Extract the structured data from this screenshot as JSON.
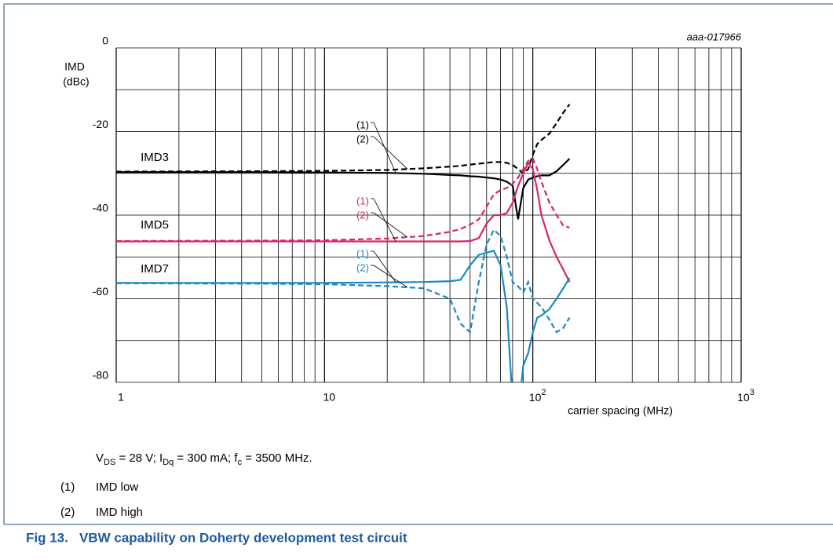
{
  "chart_data": {
    "type": "line",
    "figure_id": "aaa-017966",
    "y_label": [
      "IMD",
      "(dBc)"
    ],
    "x_label": "carrier spacing (MHz)",
    "xscale": "log",
    "xlim": [
      1,
      1000
    ],
    "xticks": [
      1,
      10,
      {
        "value": 100,
        "label": "10",
        "exp": "2"
      },
      {
        "value": 1000,
        "label": "10",
        "exp": "3"
      }
    ],
    "minor_grid": true,
    "ylim": [
      -80,
      0
    ],
    "yticks": [
      0,
      -20,
      -40,
      -60,
      -80
    ],
    "ygrid": [
      0,
      -10,
      -20,
      -30,
      -40,
      -50,
      -60,
      -70,
      -80
    ],
    "x": [
      1,
      5,
      10,
      20,
      30,
      40,
      45,
      50,
      55,
      60,
      65,
      70,
      75,
      80,
      85,
      90,
      95,
      100,
      105,
      110,
      120,
      130,
      140,
      150
    ],
    "groups": [
      {
        "label": "IMD3",
        "color": "#000000",
        "series": [
          {
            "name": "(1)",
            "dashed": false,
            "values": [
              -29.7,
              -29.7,
              -29.8,
              -29.9,
              -30.1,
              -30.4,
              -30.5,
              -30.7,
              -30.8,
              -31,
              -31.2,
              -31.5,
              -32,
              -33,
              -41,
              -33.5,
              -31.5,
              -31,
              -30.7,
              -30.5,
              -30.5,
              -29.5,
              -28,
              -26.5
            ]
          },
          {
            "name": "(2)",
            "dashed": true,
            "values": [
              -29.6,
              -29.5,
              -29.4,
              -29.2,
              -28.8,
              -28.4,
              -28.2,
              -27.9,
              -27.7,
              -27.5,
              -27.3,
              -27.3,
              -27.5,
              -28,
              -29,
              -30,
              -29,
              -25.5,
              -23,
              -22,
              -20.5,
              -18,
              -15.5,
              -13.5
            ]
          }
        ]
      },
      {
        "label": "IMD5",
        "color": "#d6246e",
        "series": [
          {
            "name": "(1)",
            "dashed": false,
            "values": [
              -46.3,
              -46.3,
              -46.3,
              -46.3,
              -46.3,
              -46.3,
              -46.3,
              -46.2,
              -45.5,
              -42,
              -40,
              -40,
              -39.5,
              -37,
              -33,
              -30,
              -27.5,
              -29,
              -34,
              -40,
              -46,
              -50,
              -53,
              -56
            ]
          },
          {
            "name": "(2)",
            "dashed": true,
            "values": [
              -46.2,
              -46.1,
              -46,
              -45.6,
              -45,
              -44,
              -43.3,
              -42.3,
              -41,
              -38,
              -35,
              -34,
              -33.5,
              -32.5,
              -31,
              -29,
              -27,
              -26.5,
              -29,
              -32,
              -37,
              -40,
              -42.5,
              -43
            ]
          }
        ]
      },
      {
        "label": "IMD7",
        "color": "#1a87c5",
        "series": [
          {
            "name": "(1)",
            "dashed": false,
            "values": [
              -56.2,
              -56.2,
              -56.2,
              -56.1,
              -56,
              -55.8,
              -55.5,
              -52,
              -49.5,
              -49,
              -48.5,
              -52,
              -62,
              -85,
              -88,
              -76,
              -73,
              -68,
              -64.5,
              -64,
              -62.5,
              -60,
              -57.5,
              -55
            ]
          },
          {
            "name": "(2)",
            "dashed": true,
            "values": [
              -56.3,
              -56.4,
              -56.5,
              -57,
              -57.5,
              -60,
              -66,
              -68,
              -56,
              -47,
              -43.5,
              -45,
              -50,
              -56,
              -57,
              -58.5,
              -56,
              -60,
              -61,
              -62,
              -65,
              -68,
              -67,
              -64.5
            ]
          }
        ]
      }
    ],
    "conditions": [
      "V",
      "DS",
      " = 28 V; I",
      "Dq",
      " = 300 mA; f",
      "c",
      " = 3500 MHz."
    ],
    "notes": [
      [
        "(1)",
        "IMD low"
      ],
      [
        "(2)",
        "IMD high"
      ]
    ],
    "caption": "Fig 13.   VBW capability on Doherty development test circuit"
  }
}
